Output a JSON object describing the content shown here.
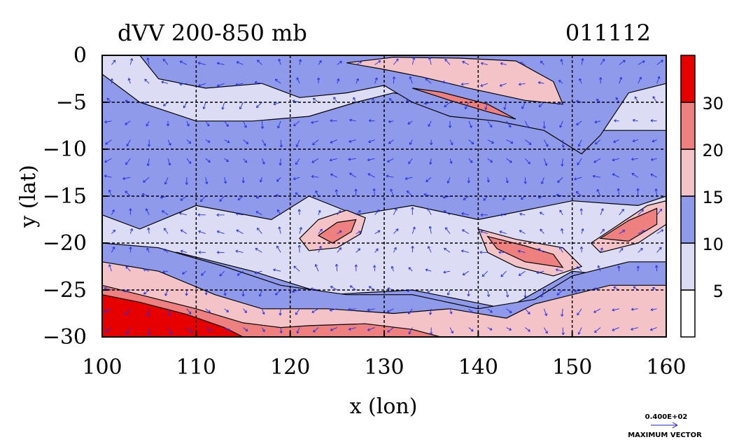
{
  "chart_data": {
    "type": "heatmap",
    "title": "dVV 200-850 mb",
    "date_label": "011112",
    "xlabel": "x (lon)",
    "ylabel": "y (lat)",
    "xlim": [
      100,
      160
    ],
    "ylim": [
      -30,
      0
    ],
    "x_ticks": [
      100,
      110,
      120,
      130,
      140,
      150,
      160
    ],
    "x_tick_labels": [
      "100",
      "110",
      "120",
      "130",
      "140",
      "150",
      "160"
    ],
    "y_ticks": [
      0,
      -5,
      -10,
      -15,
      -20,
      -25,
      -30
    ],
    "y_tick_labels": [
      "0",
      "−5",
      "−10",
      "−15",
      "−20",
      "−25",
      "−30"
    ],
    "grid": true,
    "colorbar": {
      "levels": [
        0,
        5,
        10,
        15,
        20,
        30,
        35
      ],
      "tick_labels": [
        "5",
        "10",
        "15",
        "20",
        "30"
      ],
      "colors": [
        "#ffffff",
        "#dcdcf5",
        "#8f9aea",
        "#f4c3c8",
        "#ee8080",
        "#e60000"
      ]
    },
    "legend": {
      "value_label": "0.400E+02",
      "caption": "MAXIMUM VECTOR"
    },
    "regions": [
      {
        "name": "band-a",
        "level_index": 1,
        "polygon": [
          [
            100,
            -17
          ],
          [
            104,
            -18.5
          ],
          [
            110,
            -16
          ],
          [
            118,
            -17.5
          ],
          [
            122,
            -15
          ],
          [
            127,
            -17
          ],
          [
            133,
            -16
          ],
          [
            140,
            -17.5
          ],
          [
            150,
            -15.5
          ],
          [
            157,
            -16
          ],
          [
            160,
            -15
          ],
          [
            160,
            -24
          ],
          [
            150,
            -23
          ],
          [
            143,
            -27
          ],
          [
            133,
            -25
          ],
          [
            124,
            -25.5
          ],
          [
            116,
            -23
          ],
          [
            108,
            -21
          ],
          [
            100,
            -21
          ]
        ]
      },
      {
        "name": "band-b",
        "level_index": 2,
        "polygon": [
          [
            100,
            -20
          ],
          [
            106,
            -20.5
          ],
          [
            113,
            -22.5
          ],
          [
            119,
            -24.5
          ],
          [
            126,
            -25.5
          ],
          [
            133,
            -25.5
          ],
          [
            140,
            -27
          ],
          [
            146,
            -26
          ],
          [
            150,
            -23.5
          ],
          [
            156,
            -22
          ],
          [
            160,
            -22
          ],
          [
            160,
            -30
          ],
          [
            100,
            -30
          ]
        ]
      },
      {
        "name": "band-c",
        "level_index": 3,
        "polygon": [
          [
            100,
            -22
          ],
          [
            106,
            -23
          ],
          [
            112,
            -25.5
          ],
          [
            117,
            -27
          ],
          [
            124,
            -27
          ],
          [
            131,
            -27.5
          ],
          [
            137,
            -27
          ],
          [
            143,
            -28
          ],
          [
            146,
            -26.5
          ],
          [
            150,
            -25.5
          ],
          [
            154,
            -24.5
          ],
          [
            160,
            -24.5
          ],
          [
            160,
            -30
          ],
          [
            100,
            -30
          ]
        ]
      },
      {
        "name": "band-d",
        "level_index": 4,
        "polygon": [
          [
            100,
            -24.5
          ],
          [
            104,
            -25.5
          ],
          [
            110,
            -27
          ],
          [
            115,
            -28.5
          ],
          [
            119,
            -29
          ],
          [
            122,
            -28.8
          ],
          [
            128,
            -28.6
          ],
          [
            133,
            -29.2
          ],
          [
            136,
            -30
          ],
          [
            100,
            -30
          ]
        ]
      },
      {
        "name": "band-e",
        "level_index": 5,
        "polygon": [
          [
            100,
            -25.5
          ],
          [
            104,
            -26.3
          ],
          [
            109,
            -27.6
          ],
          [
            113,
            -29
          ],
          [
            115,
            -30
          ],
          [
            100,
            -30
          ]
        ]
      },
      {
        "name": "north-a",
        "level_index": 1,
        "polygon": [
          [
            100,
            -2
          ],
          [
            104,
            -5
          ],
          [
            110,
            -7
          ],
          [
            116,
            -7
          ],
          [
            122,
            -6.5
          ],
          [
            127,
            -5
          ],
          [
            131,
            -4
          ],
          [
            136,
            -4.8
          ],
          [
            140,
            -4
          ],
          [
            144,
            -5.5
          ],
          [
            149,
            -6.5
          ],
          [
            153,
            -8
          ],
          [
            160,
            -8
          ],
          [
            160,
            0
          ],
          [
            100,
            0
          ]
        ]
      },
      {
        "name": "north-b",
        "level_index": 2,
        "polygon": [
          [
            104,
            0
          ],
          [
            106,
            -2.5
          ],
          [
            111,
            -3.5
          ],
          [
            117,
            -3
          ],
          [
            121,
            -4.5
          ],
          [
            126,
            -4
          ],
          [
            130,
            -3.2
          ],
          [
            133,
            -5
          ],
          [
            137,
            -6.5
          ],
          [
            142,
            -7
          ],
          [
            147,
            -8
          ],
          [
            151,
            -10.5
          ],
          [
            153,
            -8.5
          ],
          [
            156,
            -4
          ],
          [
            160,
            -3
          ],
          [
            160,
            0
          ]
        ]
      },
      {
        "name": "north-c",
        "level_index": 3,
        "polygon": [
          [
            126,
            -0.8
          ],
          [
            130,
            -1.5
          ],
          [
            134,
            -2.3
          ],
          [
            139,
            -3.5
          ],
          [
            145,
            -4.8
          ],
          [
            149,
            -5.2
          ],
          [
            148,
            -2.8
          ],
          [
            144,
            -0.6
          ],
          [
            138,
            -0.3
          ],
          [
            131,
            -0.2
          ]
        ]
      },
      {
        "name": "north-d",
        "level_index": 4,
        "polygon": [
          [
            133,
            -3.5
          ],
          [
            137,
            -4.8
          ],
          [
            141,
            -6
          ],
          [
            144,
            -6.8
          ],
          [
            141,
            -5.2
          ],
          [
            136,
            -3.9
          ]
        ]
      },
      {
        "name": "blob-1",
        "level_index": 3,
        "polygon": [
          [
            121,
            -19.5
          ],
          [
            123,
            -17.5
          ],
          [
            126,
            -16.5
          ],
          [
            128,
            -17.3
          ],
          [
            127.5,
            -19
          ],
          [
            125,
            -20.5
          ],
          [
            122,
            -20.8
          ]
        ]
      },
      {
        "name": "blob-1-core",
        "level_index": 4,
        "polygon": [
          [
            123,
            -19.2
          ],
          [
            125,
            -17.8
          ],
          [
            127,
            -17.5
          ],
          [
            126.5,
            -18.8
          ],
          [
            124.5,
            -20
          ]
        ]
      },
      {
        "name": "blob-2",
        "level_index": 3,
        "polygon": [
          [
            140,
            -18.5
          ],
          [
            144,
            -19.6
          ],
          [
            149,
            -20.5
          ],
          [
            151,
            -22.5
          ],
          [
            148,
            -23.5
          ],
          [
            144,
            -22.5
          ],
          [
            141,
            -21
          ]
        ]
      },
      {
        "name": "blob-2-core",
        "level_index": 4,
        "polygon": [
          [
            141,
            -19.3
          ],
          [
            145,
            -20.3
          ],
          [
            148,
            -21.2
          ],
          [
            149,
            -22.6
          ],
          [
            145,
            -22
          ],
          [
            142,
            -20.6
          ]
        ]
      },
      {
        "name": "blob-3",
        "level_index": 3,
        "polygon": [
          [
            152,
            -20
          ],
          [
            155,
            -18
          ],
          [
            158,
            -16
          ],
          [
            160,
            -15.5
          ],
          [
            160,
            -18
          ],
          [
            157,
            -20
          ],
          [
            153,
            -21
          ]
        ]
      },
      {
        "name": "blob-3-core",
        "level_index": 4,
        "polygon": [
          [
            153,
            -19.5
          ],
          [
            156,
            -17.6
          ],
          [
            159,
            -16.3
          ],
          [
            159,
            -18
          ],
          [
            156,
            -19.8
          ]
        ]
      }
    ]
  }
}
